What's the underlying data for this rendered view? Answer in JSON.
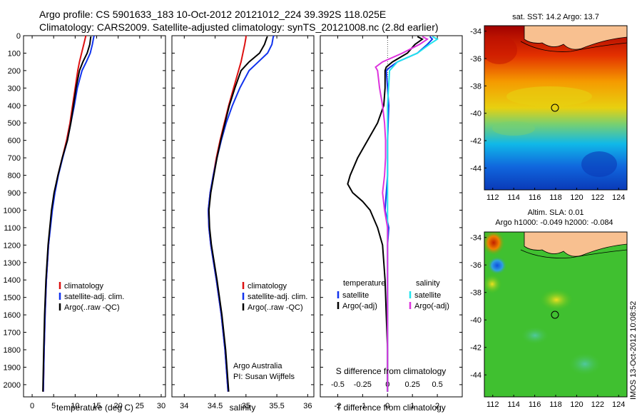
{
  "header": {
    "line1": "Argo profile: CS 5901633_183 10-Oct-2012 20121012_224 39.392S 118.025E",
    "line2": "Climatology: CARS2009. Satellite-adjusted climatology: synTS_20121008.nc (2.8d earlier)"
  },
  "panels": {
    "temp": {
      "xlabel": "temperature (deg C)"
    },
    "sal": {
      "xlabel": "salinity",
      "credit1": "Argo Australia",
      "credit2": "PI: Susan Wijffels"
    },
    "diff": {
      "xlabel_top": "S difference from climatology",
      "xlabel_bottom": "T difference from climatology",
      "legend_t_title": "temperature",
      "legend_s_title": "salinity"
    },
    "legend": {
      "clim": "climatology",
      "sat": "satellite-adj. clim.",
      "argo": "Argo(..raw -QC)",
      "diff_sat": "satellite",
      "diff_argo": "Argo(-adj)"
    }
  },
  "maps": {
    "sst_title": "sat. SST: 14.2 Argo: 13.7",
    "sla_title1": "Altim. SLA: 0.01",
    "sla_title2": "Argo h1000: -0.049 h2000: -0.084",
    "side_text": "IMOS 13-Oct-2012 10:08:52",
    "xticks": [
      112,
      114,
      116,
      118,
      120,
      122,
      124
    ],
    "yticks": [
      -34,
      -36,
      -38,
      -40,
      -42,
      -44
    ],
    "argo_lon": 118.025,
    "argo_lat": -39.392
  },
  "colors": {
    "clim": "#dd1111",
    "sat": "#1133ee",
    "argo": "#000000",
    "sal_sat": "#22e5ee",
    "sal_argo": "#dd33dd"
  },
  "chart_data": [
    {
      "type": "line",
      "panel": "temperature",
      "xlabel": "temperature (deg C)",
      "ylabel": "",
      "xlim": [
        -2,
        31
      ],
      "ylim": [
        2070,
        0
      ],
      "y_reversed": true,
      "xticks": [
        0,
        5,
        10,
        15,
        20,
        25,
        30
      ],
      "yticks": [
        0,
        100,
        200,
        300,
        400,
        500,
        600,
        700,
        800,
        900,
        1000,
        1100,
        1200,
        1300,
        1400,
        1500,
        1600,
        1700,
        1800,
        1900,
        2000
      ],
      "series": [
        {
          "name": "climatology",
          "color": "#dd1111",
          "depth": [
            0,
            10,
            50,
            100,
            150,
            200,
            300,
            400,
            500,
            600,
            700,
            800,
            900,
            1000,
            1200,
            1400,
            1600,
            1800,
            2040
          ],
          "values": [
            12.5,
            12.4,
            12.0,
            11.5,
            11.0,
            10.6,
            10.0,
            9.4,
            8.8,
            8.0,
            7.0,
            6.0,
            5.2,
            4.6,
            3.8,
            3.3,
            3.0,
            2.8,
            2.6
          ]
        },
        {
          "name": "satellite-adj. clim.",
          "color": "#1133ee",
          "depth": [
            0,
            10,
            50,
            100,
            150,
            200,
            300,
            400,
            500,
            600,
            700,
            800,
            900,
            1000,
            1200,
            1400,
            1600,
            1800,
            2040
          ],
          "values": [
            14.4,
            14.3,
            14.0,
            13.5,
            12.6,
            11.6,
            10.5,
            9.8,
            9.0,
            8.2,
            7.1,
            6.1,
            5.3,
            4.7,
            3.8,
            3.3,
            3.0,
            2.8,
            2.6
          ]
        },
        {
          "name": "Argo(..raw -QC)",
          "color": "#000000",
          "depth": [
            5,
            10,
            50,
            100,
            150,
            200,
            300,
            400,
            500,
            600,
            700,
            800,
            900,
            1000,
            1200,
            1400,
            1600,
            1800,
            2040
          ],
          "values": [
            13.7,
            13.6,
            13.4,
            12.8,
            11.8,
            11.0,
            10.2,
            9.6,
            9.0,
            8.2,
            7.0,
            6.0,
            5.1,
            4.5,
            3.7,
            3.2,
            2.9,
            2.7,
            2.5
          ]
        }
      ]
    },
    {
      "type": "line",
      "panel": "salinity",
      "xlabel": "salinity",
      "ylabel": "",
      "xlim": [
        33.8,
        36.1
      ],
      "ylim": [
        2070,
        0
      ],
      "y_reversed": true,
      "xticks": [
        34,
        34.5,
        35,
        35.5,
        36
      ],
      "series": [
        {
          "name": "climatology",
          "color": "#dd1111",
          "depth": [
            0,
            10,
            50,
            100,
            150,
            200,
            300,
            400,
            500,
            600,
            700,
            800,
            900,
            1000,
            1100,
            1200,
            1400,
            1600,
            1800,
            2040
          ],
          "values": [
            35.0,
            35.0,
            34.98,
            34.95,
            34.92,
            34.88,
            34.8,
            34.72,
            34.65,
            34.58,
            34.52,
            34.47,
            34.42,
            34.39,
            34.4,
            34.43,
            34.52,
            34.6,
            34.66,
            34.71
          ]
        },
        {
          "name": "satellite-adj. clim.",
          "color": "#1133ee",
          "depth": [
            0,
            10,
            50,
            100,
            150,
            200,
            300,
            400,
            500,
            600,
            700,
            800,
            900,
            1000,
            1100,
            1200,
            1400,
            1600,
            1800,
            2040
          ],
          "values": [
            35.45,
            35.44,
            35.42,
            35.35,
            35.2,
            35.05,
            34.9,
            34.78,
            34.68,
            34.6,
            34.53,
            34.47,
            34.42,
            34.39,
            34.4,
            34.43,
            34.52,
            34.6,
            34.66,
            34.71
          ]
        },
        {
          "name": "Argo(..raw -QC)",
          "color": "#000000",
          "depth": [
            5,
            10,
            50,
            100,
            150,
            200,
            300,
            400,
            500,
            600,
            700,
            800,
            900,
            1000,
            1100,
            1200,
            1400,
            1600,
            1800,
            2040
          ],
          "values": [
            35.35,
            35.34,
            35.3,
            35.22,
            35.05,
            34.92,
            34.82,
            34.73,
            34.66,
            34.59,
            34.53,
            34.48,
            34.43,
            34.4,
            34.41,
            34.44,
            34.53,
            34.61,
            34.67,
            34.72
          ]
        }
      ]
    },
    {
      "type": "line",
      "panel": "difference",
      "xlabel": "T difference from climatology",
      "x2label": "S difference from climatology",
      "xlim": [
        -2.7,
        3.0
      ],
      "x2lim": [
        -0.675,
        0.75
      ],
      "ylim": [
        2070,
        0
      ],
      "y_reversed": true,
      "xticks": [
        -2,
        -1,
        0,
        1,
        2
      ],
      "x2ticks": [
        -0.5,
        -0.25,
        0,
        0.25,
        0.5
      ],
      "series": [
        {
          "name": "temperature satellite",
          "color": "#1133ee",
          "depth": [
            5,
            20,
            50,
            100,
            150,
            180,
            200,
            300,
            400,
            600,
            800,
            1000,
            1100,
            1200,
            1400,
            1600,
            1800,
            2040
          ],
          "values": [
            1.7,
            1.8,
            1.6,
            1.2,
            0.4,
            0.1,
            -0.05,
            0.0,
            0.05,
            0.0,
            0.0,
            -0.1,
            0.05,
            0.0,
            0.0,
            0.0,
            0.0,
            0.0
          ]
        },
        {
          "name": "temperature Argo(-adj)",
          "color": "#000000",
          "depth": [
            5,
            20,
            50,
            100,
            150,
            180,
            200,
            300,
            400,
            500,
            600,
            700,
            800,
            850,
            900,
            950,
            1000,
            1100,
            1200,
            1400,
            1600,
            1800,
            2040
          ],
          "values": [
            1.2,
            1.4,
            1.1,
            0.8,
            0.2,
            -0.05,
            -0.1,
            -0.1,
            -0.15,
            -0.4,
            -0.8,
            -1.2,
            -1.5,
            -1.6,
            -1.4,
            -1.0,
            -0.7,
            -0.4,
            -0.2,
            -0.1,
            -0.05,
            0.0,
            0.0
          ]
        },
        {
          "name": "salinity satellite",
          "color": "#22e5ee",
          "depth": [
            5,
            20,
            50,
            100,
            150,
            200,
            300,
            400,
            500,
            600,
            800,
            1000,
            1200,
            1400,
            1600,
            1800,
            2040
          ],
          "values": [
            0.45,
            0.5,
            0.42,
            0.3,
            0.1,
            0.02,
            0.01,
            0.0,
            0.0,
            0.0,
            0.0,
            0.0,
            0.0,
            0.0,
            0.0,
            0.0,
            0.0
          ]
        },
        {
          "name": "salinity Argo(-adj)",
          "color": "#dd33dd",
          "depth": [
            5,
            20,
            50,
            100,
            150,
            180,
            200,
            300,
            400,
            500,
            600,
            700,
            800,
            900,
            1000,
            1100,
            1200,
            1400,
            1600,
            1800,
            2040
          ],
          "values": [
            0.35,
            0.4,
            0.32,
            0.15,
            -0.05,
            -0.12,
            -0.1,
            -0.08,
            -0.05,
            -0.03,
            -0.02,
            -0.02,
            -0.03,
            -0.05,
            -0.03,
            0.0,
            0.0,
            0.0,
            0.0,
            0.0,
            0.0
          ]
        }
      ]
    }
  ]
}
